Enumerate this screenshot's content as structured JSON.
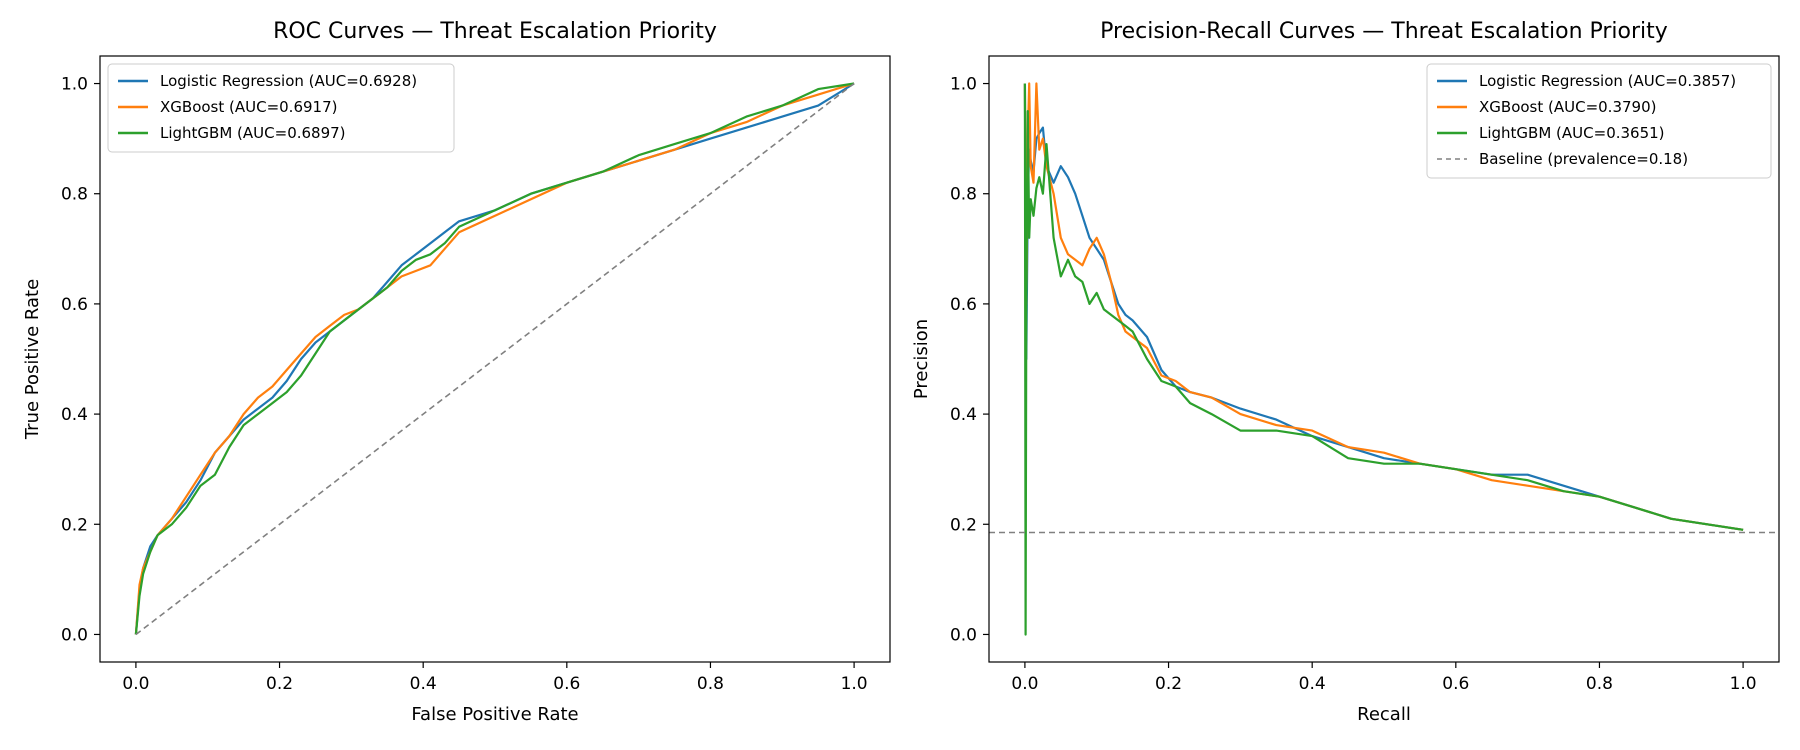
{
  "chart_data": [
    {
      "type": "line",
      "title": "ROC Curves — Threat Escalation Priority",
      "xlabel": "False Positive Rate",
      "ylabel": "True Positive Rate",
      "xlim": [
        -0.05,
        1.05
      ],
      "ylim": [
        -0.05,
        1.05
      ],
      "xticks": [
        0.0,
        0.2,
        0.4,
        0.6,
        0.8,
        1.0
      ],
      "yticks": [
        0.0,
        0.2,
        0.4,
        0.6,
        0.8,
        1.0
      ],
      "tick_labels": [
        "0.0",
        "0.2",
        "0.4",
        "0.6",
        "0.8",
        "1.0"
      ],
      "grid": false,
      "legend_position": "top-left",
      "series": [
        {
          "name": "Logistic Regression (AUC=0.6928)",
          "color": "#1f77b4",
          "style": "solid",
          "x": [
            0.0,
            0.005,
            0.01,
            0.02,
            0.03,
            0.05,
            0.07,
            0.09,
            0.11,
            0.13,
            0.15,
            0.17,
            0.19,
            0.21,
            0.23,
            0.25,
            0.27,
            0.29,
            0.31,
            0.33,
            0.35,
            0.37,
            0.39,
            0.41,
            0.43,
            0.45,
            0.5,
            0.55,
            0.6,
            0.65,
            0.7,
            0.75,
            0.8,
            0.85,
            0.9,
            0.95,
            1.0
          ],
          "y": [
            0.0,
            0.08,
            0.12,
            0.16,
            0.18,
            0.21,
            0.24,
            0.28,
            0.33,
            0.36,
            0.39,
            0.41,
            0.43,
            0.46,
            0.5,
            0.53,
            0.55,
            0.57,
            0.59,
            0.61,
            0.64,
            0.67,
            0.69,
            0.71,
            0.73,
            0.75,
            0.77,
            0.8,
            0.82,
            0.84,
            0.86,
            0.88,
            0.9,
            0.92,
            0.94,
            0.96,
            1.0
          ]
        },
        {
          "name": "XGBoost (AUC=0.6917)",
          "color": "#ff7f0e",
          "style": "solid",
          "x": [
            0.0,
            0.005,
            0.01,
            0.02,
            0.03,
            0.05,
            0.07,
            0.09,
            0.11,
            0.13,
            0.15,
            0.17,
            0.19,
            0.21,
            0.23,
            0.25,
            0.27,
            0.29,
            0.31,
            0.33,
            0.35,
            0.37,
            0.39,
            0.41,
            0.43,
            0.45,
            0.5,
            0.55,
            0.6,
            0.65,
            0.7,
            0.75,
            0.8,
            0.85,
            0.9,
            0.95,
            1.0
          ],
          "y": [
            0.0,
            0.09,
            0.12,
            0.15,
            0.18,
            0.21,
            0.25,
            0.29,
            0.33,
            0.36,
            0.4,
            0.43,
            0.45,
            0.48,
            0.51,
            0.54,
            0.56,
            0.58,
            0.59,
            0.61,
            0.63,
            0.65,
            0.66,
            0.67,
            0.7,
            0.73,
            0.76,
            0.79,
            0.82,
            0.84,
            0.86,
            0.88,
            0.91,
            0.93,
            0.96,
            0.98,
            1.0
          ]
        },
        {
          "name": "LightGBM (AUC=0.6897)",
          "color": "#2ca02c",
          "style": "solid",
          "x": [
            0.0,
            0.005,
            0.01,
            0.02,
            0.03,
            0.05,
            0.07,
            0.09,
            0.11,
            0.13,
            0.15,
            0.17,
            0.19,
            0.21,
            0.23,
            0.25,
            0.27,
            0.29,
            0.31,
            0.33,
            0.35,
            0.37,
            0.39,
            0.41,
            0.43,
            0.45,
            0.5,
            0.55,
            0.6,
            0.65,
            0.7,
            0.75,
            0.8,
            0.85,
            0.9,
            0.95,
            1.0
          ],
          "y": [
            0.0,
            0.07,
            0.11,
            0.15,
            0.18,
            0.2,
            0.23,
            0.27,
            0.29,
            0.34,
            0.38,
            0.4,
            0.42,
            0.44,
            0.47,
            0.51,
            0.55,
            0.57,
            0.59,
            0.61,
            0.63,
            0.66,
            0.68,
            0.69,
            0.71,
            0.74,
            0.77,
            0.8,
            0.82,
            0.84,
            0.87,
            0.89,
            0.91,
            0.94,
            0.96,
            0.99,
            1.0
          ]
        },
        {
          "name": "",
          "color": "#808080",
          "style": "dashed",
          "x": [
            0.0,
            1.0
          ],
          "y": [
            0.0,
            1.0
          ]
        }
      ]
    },
    {
      "type": "line",
      "title": "Precision-Recall Curves — Threat Escalation Priority",
      "xlabel": "Recall",
      "ylabel": "Precision",
      "xlim": [
        -0.05,
        1.05
      ],
      "ylim": [
        -0.05,
        1.05
      ],
      "xticks": [
        0.0,
        0.2,
        0.4,
        0.6,
        0.8,
        1.0
      ],
      "yticks": [
        0.0,
        0.2,
        0.4,
        0.6,
        0.8,
        1.0
      ],
      "tick_labels": [
        "0.0",
        "0.2",
        "0.4",
        "0.6",
        "0.8",
        "1.0"
      ],
      "grid": false,
      "legend_position": "top-right",
      "series": [
        {
          "name": "Logistic Regression (AUC=0.3857)",
          "color": "#1f77b4",
          "style": "solid",
          "x": [
            0.0,
            0.002,
            0.004,
            0.006,
            0.008,
            0.012,
            0.016,
            0.02,
            0.025,
            0.03,
            0.04,
            0.05,
            0.06,
            0.07,
            0.08,
            0.09,
            0.1,
            0.11,
            0.12,
            0.13,
            0.14,
            0.15,
            0.17,
            0.19,
            0.21,
            0.23,
            0.26,
            0.3,
            0.35,
            0.4,
            0.45,
            0.5,
            0.55,
            0.6,
            0.65,
            0.7,
            0.75,
            0.8,
            0.85,
            0.9,
            0.95,
            1.0
          ],
          "y": [
            1.0,
            0.5,
            0.8,
            0.88,
            0.86,
            0.84,
            0.9,
            0.91,
            0.92,
            0.85,
            0.82,
            0.85,
            0.83,
            0.8,
            0.76,
            0.72,
            0.7,
            0.68,
            0.64,
            0.6,
            0.58,
            0.57,
            0.54,
            0.48,
            0.45,
            0.44,
            0.43,
            0.41,
            0.39,
            0.36,
            0.34,
            0.32,
            0.31,
            0.3,
            0.29,
            0.29,
            0.27,
            0.25,
            0.23,
            0.21,
            0.2,
            0.19
          ]
        },
        {
          "name": "XGBoost (AUC=0.3790)",
          "color": "#ff7f0e",
          "style": "solid",
          "x": [
            0.0,
            0.002,
            0.004,
            0.006,
            0.008,
            0.012,
            0.016,
            0.02,
            0.025,
            0.03,
            0.04,
            0.05,
            0.06,
            0.07,
            0.08,
            0.09,
            0.1,
            0.11,
            0.12,
            0.13,
            0.14,
            0.15,
            0.17,
            0.19,
            0.21,
            0.23,
            0.26,
            0.3,
            0.35,
            0.4,
            0.45,
            0.5,
            0.55,
            0.6,
            0.65,
            0.7,
            0.75,
            0.8,
            0.85,
            0.9,
            0.95,
            1.0
          ],
          "y": [
            1.0,
            0.6,
            0.9,
            1.0,
            0.85,
            0.82,
            1.0,
            0.88,
            0.9,
            0.85,
            0.8,
            0.72,
            0.69,
            0.68,
            0.67,
            0.7,
            0.72,
            0.69,
            0.64,
            0.58,
            0.55,
            0.54,
            0.52,
            0.47,
            0.46,
            0.44,
            0.43,
            0.4,
            0.38,
            0.37,
            0.34,
            0.33,
            0.31,
            0.3,
            0.28,
            0.27,
            0.26,
            0.25,
            0.23,
            0.21,
            0.2,
            0.19
          ]
        },
        {
          "name": "LightGBM (AUC=0.3651)",
          "color": "#2ca02c",
          "style": "solid",
          "x": [
            0.0,
            0.001,
            0.002,
            0.004,
            0.006,
            0.008,
            0.012,
            0.016,
            0.02,
            0.025,
            0.03,
            0.04,
            0.05,
            0.06,
            0.07,
            0.08,
            0.09,
            0.1,
            0.11,
            0.12,
            0.13,
            0.14,
            0.15,
            0.17,
            0.19,
            0.21,
            0.23,
            0.26,
            0.3,
            0.35,
            0.4,
            0.45,
            0.5,
            0.55,
            0.6,
            0.65,
            0.7,
            0.75,
            0.8,
            0.85,
            0.9,
            0.95,
            1.0
          ],
          "y": [
            1.0,
            0.0,
            0.6,
            0.95,
            0.72,
            0.79,
            0.76,
            0.81,
            0.83,
            0.8,
            0.89,
            0.72,
            0.65,
            0.68,
            0.65,
            0.64,
            0.6,
            0.62,
            0.59,
            0.58,
            0.57,
            0.56,
            0.55,
            0.5,
            0.46,
            0.45,
            0.42,
            0.4,
            0.37,
            0.37,
            0.36,
            0.32,
            0.31,
            0.31,
            0.3,
            0.29,
            0.28,
            0.26,
            0.25,
            0.23,
            0.21,
            0.2,
            0.19
          ]
        },
        {
          "name": "Baseline (prevalence=0.18)",
          "color": "#808080",
          "style": "dashed",
          "x": [
            -0.05,
            1.05
          ],
          "y": [
            0.185,
            0.185
          ]
        }
      ]
    }
  ]
}
